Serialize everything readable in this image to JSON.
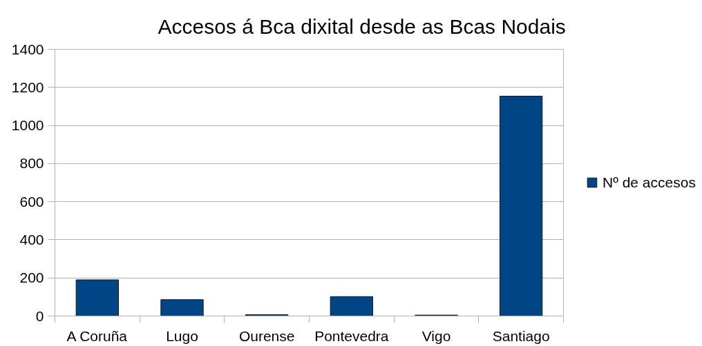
{
  "chart_data": {
    "type": "bar",
    "title": "Accesos á Bca dixital desde as Bcas Nodais",
    "categories": [
      "A Coruña",
      "Lugo",
      "Ourense",
      "Pontevedra",
      "Vigo",
      "Santiago"
    ],
    "series": [
      {
        "name": "Nº de accesos",
        "color": "#004586",
        "values": [
          190,
          86,
          7,
          102,
          5,
          1154
        ]
      }
    ],
    "ylim": [
      0,
      1400
    ],
    "yticks": [
      0,
      200,
      400,
      600,
      800,
      1000,
      1200,
      1400
    ],
    "grid": "y",
    "legend": "right"
  }
}
